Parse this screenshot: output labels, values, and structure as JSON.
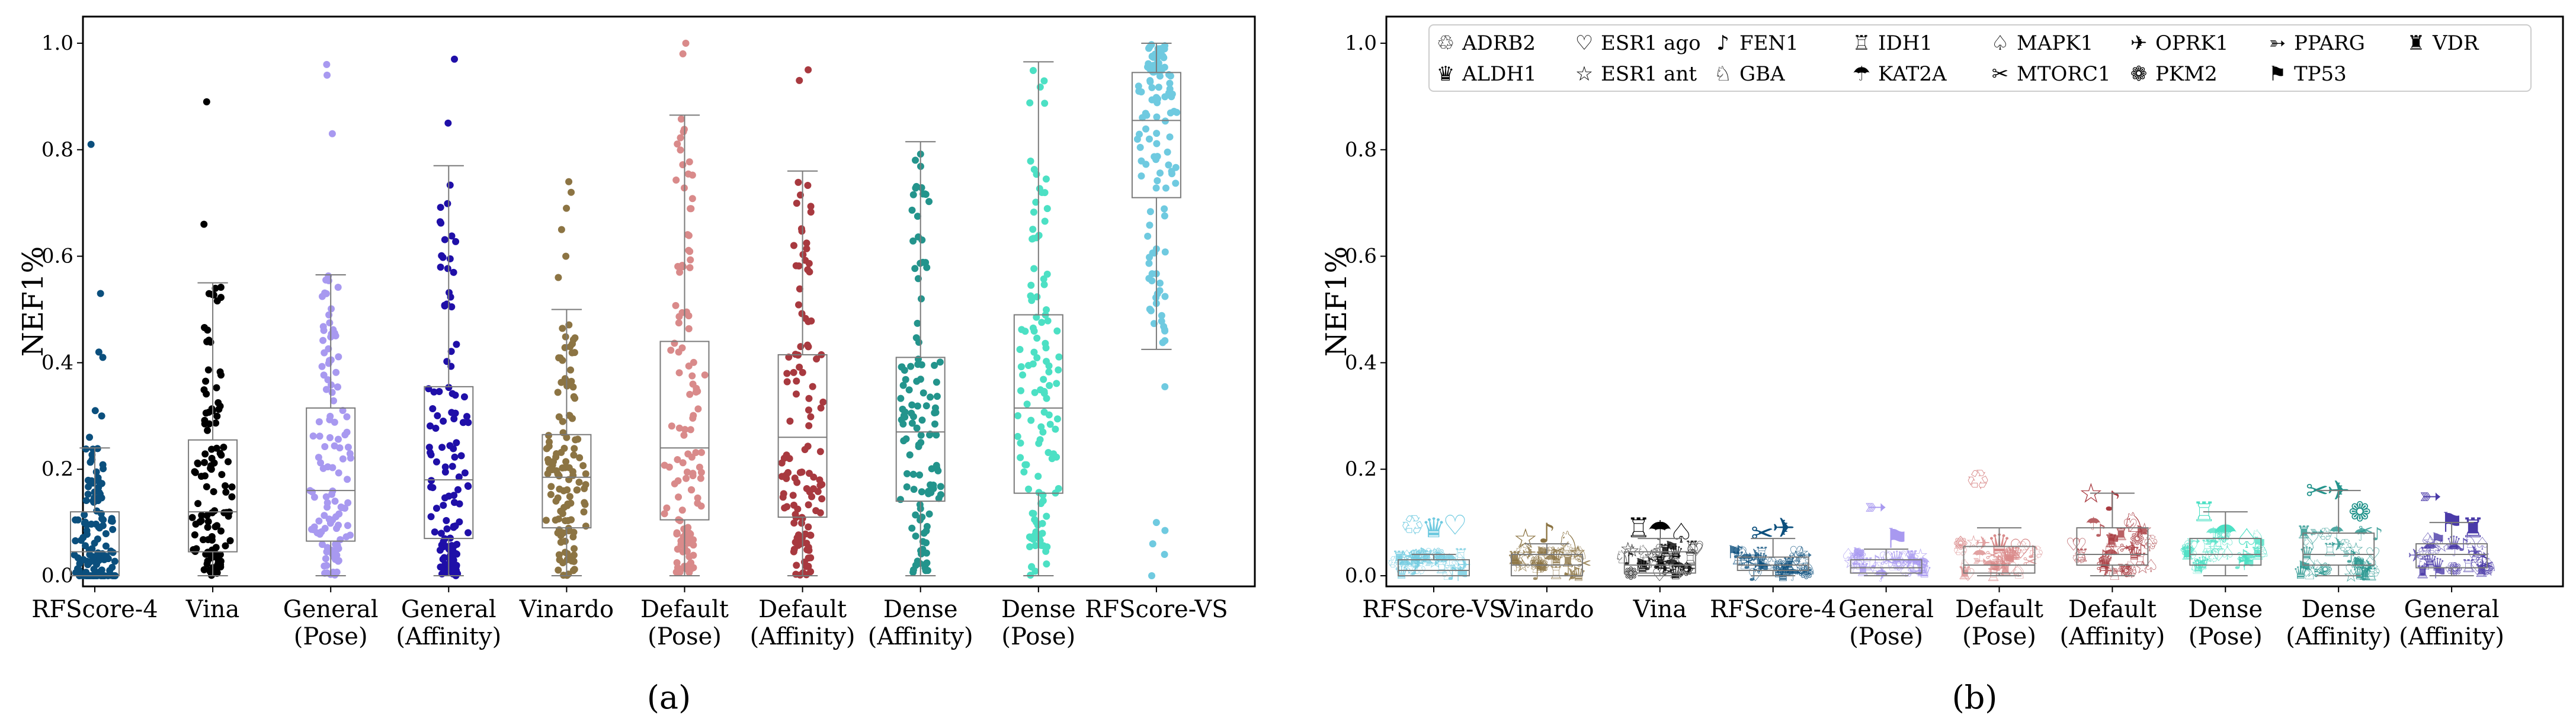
{
  "chart_data": [
    {
      "panel_label": "(a)",
      "type": "box+swarm",
      "ylabel": "NEF1%",
      "ylim": [
        -0.02,
        1.05
      ],
      "yticks": [
        0.0,
        0.2,
        0.4,
        0.6,
        0.8,
        1.0
      ],
      "ytick_labels": [
        "0.0",
        "0.2",
        "0.4",
        "0.6",
        "0.8",
        "1.0"
      ],
      "series": [
        {
          "name": "RFScore-4",
          "label_lines": [
            "RFScore-4"
          ],
          "color": "#0b4f7d",
          "box": {
            "whislo": 0.0,
            "q1": 0.0,
            "med": 0.045,
            "q3": 0.12,
            "whishi": 0.24
          },
          "outliers": [
            0.81,
            0.53,
            0.42,
            0.41,
            0.31,
            0.3,
            0.26
          ]
        },
        {
          "name": "Vina",
          "label_lines": [
            "Vina"
          ],
          "color": "#000000",
          "box": {
            "whislo": 0.0,
            "q1": 0.045,
            "med": 0.12,
            "q3": 0.255,
            "whishi": 0.55
          },
          "outliers": [
            0.89,
            0.66
          ]
        },
        {
          "name": "General (Pose)",
          "label_lines": [
            "General",
            "(Pose)"
          ],
          "color": "#a899f0",
          "box": {
            "whislo": 0.0,
            "q1": 0.065,
            "med": 0.16,
            "q3": 0.315,
            "whishi": 0.565
          },
          "outliers": [
            0.96,
            0.94,
            0.83
          ]
        },
        {
          "name": "General (Affinity)",
          "label_lines": [
            "General",
            "(Affinity)"
          ],
          "color": "#1f0fa8",
          "box": {
            "whislo": 0.0,
            "q1": 0.07,
            "med": 0.18,
            "q3": 0.355,
            "whishi": 0.77
          },
          "outliers": [
            0.97,
            0.85
          ]
        },
        {
          "name": "Vinardo",
          "label_lines": [
            "Vinardo"
          ],
          "color": "#8c7443",
          "box": {
            "whislo": 0.0,
            "q1": 0.09,
            "med": 0.185,
            "q3": 0.265,
            "whishi": 0.5
          },
          "outliers": [
            0.74,
            0.72,
            0.69,
            0.65,
            0.6,
            0.56
          ]
        },
        {
          "name": "Default (Pose)",
          "label_lines": [
            "Default",
            "(Pose)"
          ],
          "color": "#d98a8a",
          "box": {
            "whislo": 0.0,
            "q1": 0.105,
            "med": 0.24,
            "q3": 0.44,
            "whishi": 0.865
          },
          "outliers": [
            1.0,
            0.98
          ]
        },
        {
          "name": "Default (Affinity)",
          "label_lines": [
            "Default",
            "(Affinity)"
          ],
          "color": "#a8393f",
          "box": {
            "whislo": 0.0,
            "q1": 0.11,
            "med": 0.26,
            "q3": 0.415,
            "whishi": 0.76
          },
          "outliers": [
            0.95,
            0.93
          ]
        },
        {
          "name": "Dense (Affinity)",
          "label_lines": [
            "Dense",
            "(Affinity)"
          ],
          "color": "#23948c",
          "box": {
            "whislo": 0.0,
            "q1": 0.14,
            "med": 0.27,
            "q3": 0.41,
            "whishi": 0.815
          },
          "outliers": []
        },
        {
          "name": "Dense (Pose)",
          "label_lines": [
            "Dense",
            "(Pose)"
          ],
          "color": "#4ce0c4",
          "box": {
            "whislo": 0.0,
            "q1": 0.155,
            "med": 0.315,
            "q3": 0.49,
            "whishi": 0.965
          },
          "outliers": []
        },
        {
          "name": "RFScore-VS",
          "label_lines": [
            "RFScore-VS"
          ],
          "color": "#6fcae0",
          "box": {
            "whislo": 0.425,
            "q1": 0.71,
            "med": 0.855,
            "q3": 0.945,
            "whishi": 1.0
          },
          "outliers": [
            0.355,
            0.1,
            0.085,
            0.06,
            0.04,
            0.0
          ]
        }
      ]
    },
    {
      "panel_label": "(b)",
      "type": "box+marker-scatter",
      "ylabel": "NEF1%",
      "ylim": [
        -0.02,
        1.05
      ],
      "yticks": [
        0.0,
        0.2,
        0.4,
        0.6,
        0.8,
        1.0
      ],
      "ytick_labels": [
        "0.0",
        "0.2",
        "0.4",
        "0.6",
        "0.8",
        "1.0"
      ],
      "legend": {
        "placement": "top",
        "targets": [
          {
            "name": "ADRB2",
            "icon": "recycle-icon",
            "glyph": "♲"
          },
          {
            "name": "ALDH1",
            "icon": "crown-icon",
            "glyph": "♛"
          },
          {
            "name": "ESR1 ago",
            "icon": "heart-icon",
            "glyph": "♡"
          },
          {
            "name": "ESR1 ant",
            "icon": "star-icon",
            "glyph": "☆"
          },
          {
            "name": "FEN1",
            "icon": "music-note-icon",
            "glyph": "♪"
          },
          {
            "name": "GBA",
            "icon": "knight-icon",
            "glyph": "♘"
          },
          {
            "name": "IDH1",
            "icon": "rook-icon",
            "glyph": "♖"
          },
          {
            "name": "KAT2A",
            "icon": "umbrella-icon",
            "glyph": "☂"
          },
          {
            "name": "MAPK1",
            "icon": "spade-icon",
            "glyph": "♤"
          },
          {
            "name": "MTORC1",
            "icon": "scissors-icon",
            "glyph": "✂"
          },
          {
            "name": "OPRK1",
            "icon": "airplane-icon",
            "glyph": "✈"
          },
          {
            "name": "PKM2",
            "icon": "flower-icon",
            "glyph": "❁"
          },
          {
            "name": "PPARG",
            "icon": "feather-arrow-icon",
            "glyph": "➳"
          },
          {
            "name": "TP53",
            "icon": "flag-icon",
            "glyph": "⚑"
          },
          {
            "name": "VDR",
            "icon": "rook-icon",
            "glyph": "♜"
          }
        ]
      },
      "series": [
        {
          "name": "RFScore-VS",
          "label_lines": [
            "RFScore-VS"
          ],
          "color": "#6fcae0",
          "box": {
            "whislo": 0.0,
            "q1": 0.0,
            "med": 0.01,
            "q3": 0.03,
            "whishi": 0.04
          },
          "highlights": [
            0.095,
            0.09,
            0.095
          ]
        },
        {
          "name": "Vinardo",
          "label_lines": [
            "Vinardo"
          ],
          "color": "#8c7443",
          "box": {
            "whislo": 0.0,
            "q1": 0.0,
            "med": 0.02,
            "q3": 0.04,
            "whishi": 0.06
          },
          "highlights": [
            0.07,
            0.08,
            0.065
          ]
        },
        {
          "name": "Vina",
          "label_lines": [
            "Vina"
          ],
          "color": "#000000",
          "box": {
            "whislo": 0.0,
            "q1": 0.005,
            "med": 0.02,
            "q3": 0.045,
            "whishi": 0.07
          },
          "highlights": [
            0.09,
            0.085,
            0.08
          ]
        },
        {
          "name": "RFScore-4",
          "label_lines": [
            "RFScore-4"
          ],
          "color": "#0b4f7d",
          "box": {
            "whislo": 0.0,
            "q1": 0.01,
            "med": 0.02,
            "q3": 0.035,
            "whishi": 0.07
          },
          "highlights": [
            0.08,
            0.09
          ]
        },
        {
          "name": "General (Pose)",
          "label_lines": [
            "General",
            "(Pose)"
          ],
          "color": "#a899f0",
          "box": {
            "whislo": 0.0,
            "q1": 0.005,
            "med": 0.015,
            "q3": 0.03,
            "whishi": 0.05
          },
          "highlights": [
            0.13,
            0.07
          ]
        },
        {
          "name": "Default (Pose)",
          "label_lines": [
            "Default",
            "(Pose)"
          ],
          "color": "#d98a8a",
          "box": {
            "whislo": 0.0,
            "q1": 0.005,
            "med": 0.02,
            "q3": 0.055,
            "whishi": 0.09
          },
          "highlights": [
            0.18,
            0.06,
            0.05
          ]
        },
        {
          "name": "Default (Affinity)",
          "label_lines": [
            "Default",
            "(Affinity)"
          ],
          "color": "#a8393f",
          "box": {
            "whislo": 0.0,
            "q1": 0.02,
            "med": 0.04,
            "q3": 0.09,
            "whishi": 0.155
          },
          "highlights": [
            0.155,
            0.14,
            0.1
          ]
        },
        {
          "name": "Dense (Pose)",
          "label_lines": [
            "Dense",
            "(Pose)"
          ],
          "color": "#4ce0c4",
          "box": {
            "whislo": 0.0,
            "q1": 0.02,
            "med": 0.04,
            "q3": 0.07,
            "whishi": 0.12
          },
          "highlights": [
            0.12,
            0.08,
            0.07
          ]
        },
        {
          "name": "Dense (Affinity)",
          "label_lines": [
            "Dense",
            "(Affinity)"
          ],
          "color": "#23948c",
          "box": {
            "whislo": 0.0,
            "q1": 0.02,
            "med": 0.04,
            "q3": 0.08,
            "whishi": 0.16
          },
          "highlights": [
            0.16,
            0.16,
            0.12
          ]
        },
        {
          "name": "General (Affinity)",
          "label_lines": [
            "General",
            "(Affinity)"
          ],
          "color": "#4a3aa8",
          "box": {
            "whislo": 0.0,
            "q1": 0.015,
            "med": 0.04,
            "q3": 0.06,
            "whishi": 0.1
          },
          "highlights": [
            0.15,
            0.1,
            0.09
          ]
        }
      ]
    }
  ]
}
